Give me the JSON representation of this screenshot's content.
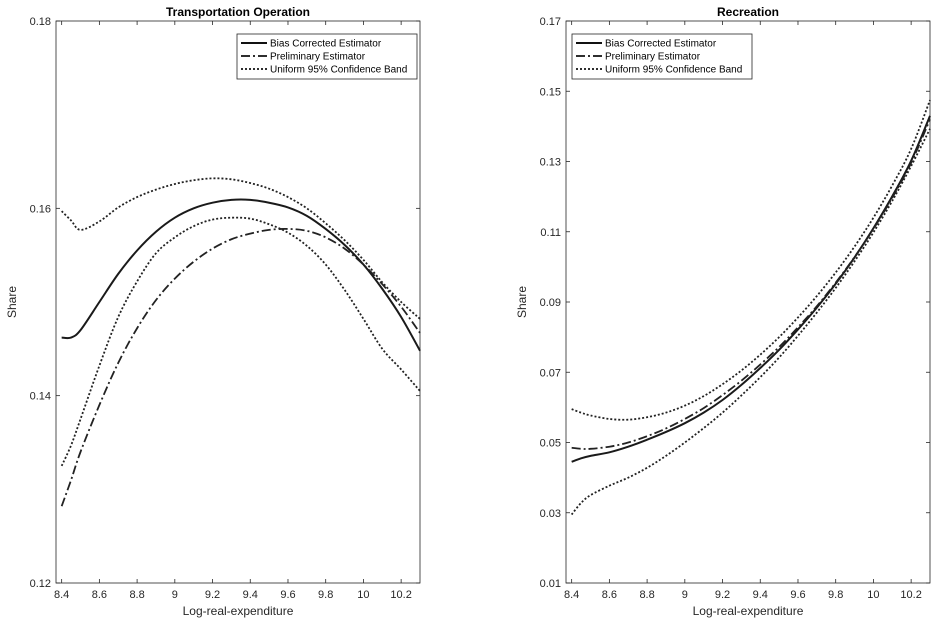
{
  "chart_data": [
    {
      "type": "line",
      "title": "Transportation Operation",
      "xlabel": "Log-real-expenditure",
      "ylabel": "Share",
      "xlim": [
        8.37,
        10.3
      ],
      "ylim": [
        0.12,
        0.18
      ],
      "x_ticks": [
        "8.4",
        "8.6",
        "8.8",
        "9",
        "9.2",
        "9.4",
        "9.6",
        "9.8",
        "10",
        "10.2"
      ],
      "y_ticks": [
        "0.12",
        "0.14",
        "0.16",
        "0.18"
      ],
      "legend_position": "top-right",
      "grid": false,
      "x": [
        8.4,
        8.45,
        8.5,
        8.6,
        8.7,
        8.8,
        8.9,
        9.0,
        9.1,
        9.2,
        9.3,
        9.4,
        9.5,
        9.6,
        9.7,
        9.8,
        9.9,
        10.0,
        10.1,
        10.2,
        10.3
      ],
      "series": [
        {
          "name": "Bias Corrected Estimator",
          "style": "solid",
          "values": [
            0.1462,
            0.1462,
            0.147,
            0.15,
            0.153,
            0.1555,
            0.1575,
            0.159,
            0.16,
            0.1606,
            0.1609,
            0.1609,
            0.1606,
            0.1601,
            0.1592,
            0.1578,
            0.1561,
            0.154,
            0.1514,
            0.1484,
            0.1448
          ]
        },
        {
          "name": "Preliminary Estimator",
          "style": "dashdot",
          "values": [
            0.1282,
            0.131,
            0.134,
            0.139,
            0.1435,
            0.1472,
            0.1502,
            0.1525,
            0.1543,
            0.1557,
            0.1567,
            0.1573,
            0.1577,
            0.1578,
            0.1576,
            0.1569,
            0.1557,
            0.154,
            0.1519,
            0.1495,
            0.1467
          ]
        },
        {
          "name": "Uniform 95% Confidence Band",
          "style": "dotted",
          "values": [
            0.1597,
            0.1587,
            0.1577,
            0.1586,
            0.1601,
            0.1612,
            0.162,
            0.1626,
            0.163,
            0.1632,
            0.1631,
            0.1627,
            0.1621,
            0.1612,
            0.16,
            0.1584,
            0.1566,
            0.1545,
            0.1521,
            0.15,
            0.1482
          ]
        },
        {
          "name": "",
          "style": "dotted",
          "values": [
            0.1325,
            0.1347,
            0.1375,
            0.1432,
            0.1484,
            0.1522,
            0.1552,
            0.1569,
            0.1581,
            0.1588,
            0.159,
            0.1589,
            0.1583,
            0.1574,
            0.156,
            0.154,
            0.1513,
            0.1482,
            0.145,
            0.1428,
            0.1405
          ]
        }
      ]
    },
    {
      "type": "line",
      "title": "Recreation",
      "xlabel": "Log-real-expenditure",
      "ylabel": "Share",
      "xlim": [
        8.37,
        10.3
      ],
      "ylim": [
        0.01,
        0.17
      ],
      "x_ticks": [
        "8.4",
        "8.6",
        "8.8",
        "9",
        "9.2",
        "9.4",
        "9.6",
        "9.8",
        "10",
        "10.2"
      ],
      "y_ticks": [
        "0.01",
        "0.03",
        "0.05",
        "0.07",
        "0.09",
        "0.11",
        "0.13",
        "0.15",
        "0.17"
      ],
      "legend_position": "top-left",
      "grid": false,
      "x": [
        8.4,
        8.45,
        8.5,
        8.6,
        8.7,
        8.8,
        8.9,
        9.0,
        9.1,
        9.2,
        9.3,
        9.4,
        9.5,
        9.6,
        9.7,
        9.8,
        9.9,
        10.0,
        10.1,
        10.2,
        10.3
      ],
      "series": [
        {
          "name": "Bias Corrected Estimator",
          "style": "solid",
          "values": [
            0.0445,
            0.0455,
            0.0462,
            0.0472,
            0.0488,
            0.0508,
            0.053,
            0.0555,
            0.0585,
            0.0621,
            0.0664,
            0.0712,
            0.0764,
            0.0822,
            0.0884,
            0.0952,
            0.1027,
            0.111,
            0.1201,
            0.1302,
            0.143
          ]
        },
        {
          "name": "Preliminary Estimator",
          "style": "dashdot",
          "values": [
            0.0485,
            0.0482,
            0.0482,
            0.0488,
            0.05,
            0.0518,
            0.054,
            0.0567,
            0.0598,
            0.0635,
            0.0676,
            0.0722,
            0.0772,
            0.0828,
            0.0888,
            0.0955,
            0.1028,
            0.1108,
            0.1197,
            0.1296,
            0.142
          ]
        },
        {
          "name": "Uniform 95% Confidence Band",
          "style": "dotted",
          "values": [
            0.0595,
            0.0585,
            0.0577,
            0.0567,
            0.0565,
            0.0572,
            0.0585,
            0.0605,
            0.0632,
            0.0666,
            0.0705,
            0.075,
            0.08,
            0.0856,
            0.0917,
            0.0984,
            0.1058,
            0.114,
            0.1232,
            0.1336,
            0.1475
          ]
        },
        {
          "name": "",
          "style": "dotted",
          "values": [
            0.0295,
            0.0328,
            0.035,
            0.0377,
            0.04,
            0.0428,
            0.0462,
            0.05,
            0.0541,
            0.0585,
            0.0634,
            0.0686,
            0.0742,
            0.0804,
            0.087,
            0.094,
            0.1016,
            0.1098,
            0.1188,
            0.1287,
            0.1393
          ]
        }
      ]
    }
  ]
}
